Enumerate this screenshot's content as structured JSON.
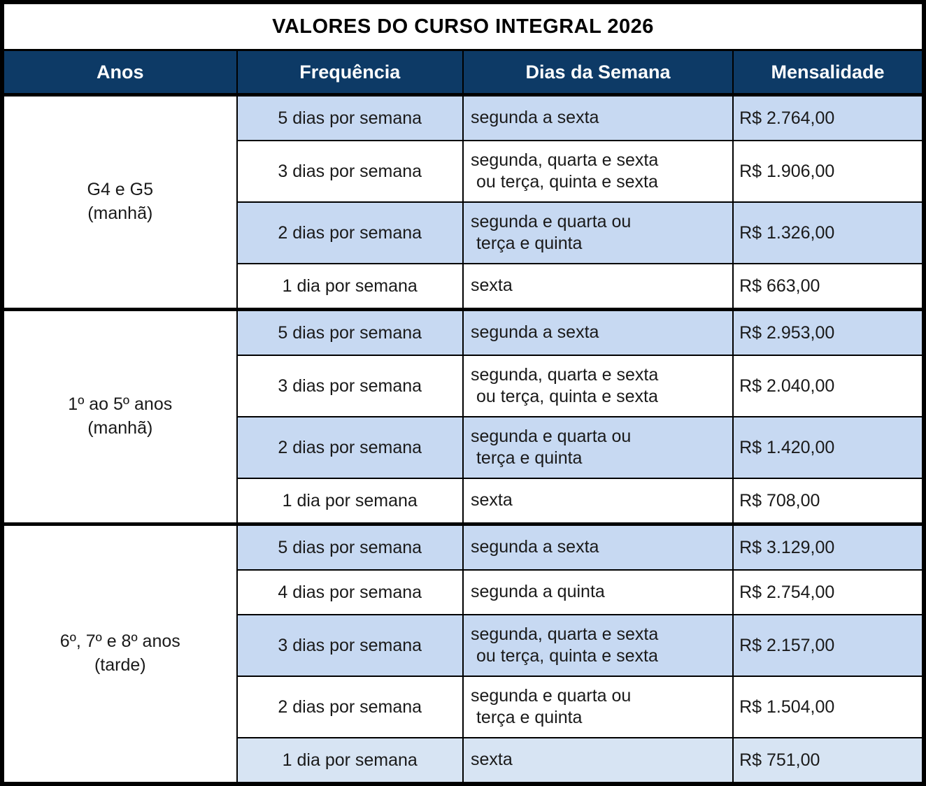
{
  "title": "VALORES DO CURSO INTEGRAL 2026",
  "columns": {
    "anos": "Anos",
    "frequencia": "Frequência",
    "dias": "Dias da Semana",
    "mensalidade": "Mensalidade"
  },
  "colors": {
    "header_bg": "#0d3a66",
    "header_text": "#ffffff",
    "row_blue": "#c7d9f2",
    "row_lightblue": "#d7e4f3",
    "row_white": "#ffffff",
    "border": "#000000",
    "text": "#1a1a1a"
  },
  "groups": [
    {
      "label": "G4 e G5",
      "sublabel": "(manhã)",
      "rows": [
        {
          "frequencia": "5 dias por semana",
          "dias": [
            "segunda a sexta"
          ],
          "mensalidade": "R$ 2.764,00"
        },
        {
          "frequencia": "3 dias por semana",
          "dias": [
            "segunda, quarta e sexta",
            "ou terça, quinta e sexta"
          ],
          "mensalidade": "R$ 1.906,00"
        },
        {
          "frequencia": "2 dias por semana",
          "dias": [
            "segunda e quarta ou",
            "terça e quinta"
          ],
          "mensalidade": "R$ 1.326,00"
        },
        {
          "frequencia": "1 dia por semana",
          "dias": [
            "sexta"
          ],
          "mensalidade": "R$ 663,00"
        }
      ]
    },
    {
      "label": "1º ao 5º anos",
      "sublabel": "(manhã)",
      "rows": [
        {
          "frequencia": "5 dias por semana",
          "dias": [
            "segunda a sexta"
          ],
          "mensalidade": "R$ 2.953,00"
        },
        {
          "frequencia": "3 dias por semana",
          "dias": [
            "segunda, quarta e sexta",
            "ou terça, quinta e sexta"
          ],
          "mensalidade": "R$ 2.040,00"
        },
        {
          "frequencia": "2 dias por semana",
          "dias": [
            "segunda e quarta ou",
            "terça e quinta"
          ],
          "mensalidade": "R$ 1.420,00"
        },
        {
          "frequencia": "1 dia por semana",
          "dias": [
            "sexta"
          ],
          "mensalidade": "R$ 708,00"
        }
      ]
    },
    {
      "label": "6º, 7º e 8º anos",
      "sublabel": "(tarde)",
      "rows": [
        {
          "frequencia": "5 dias por semana",
          "dias": [
            "segunda a sexta"
          ],
          "mensalidade": "R$ 3.129,00"
        },
        {
          "frequencia": "4 dias por semana",
          "dias": [
            "segunda a quinta"
          ],
          "mensalidade": "R$ 2.754,00"
        },
        {
          "frequencia": "3 dias por semana",
          "dias": [
            "segunda, quarta e sexta",
            "ou terça, quinta e sexta"
          ],
          "mensalidade": "R$ 2.157,00"
        },
        {
          "frequencia": "2 dias por semana",
          "dias": [
            "segunda e quarta ou",
            "terça e quinta"
          ],
          "mensalidade": "R$ 1.504,00"
        },
        {
          "frequencia": "1 dia por semana",
          "dias": [
            "sexta"
          ],
          "mensalidade": "R$ 751,00"
        }
      ]
    }
  ]
}
